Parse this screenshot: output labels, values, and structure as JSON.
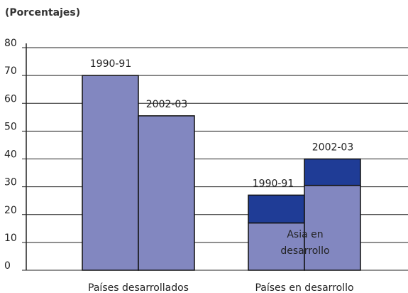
{
  "chart_data": {
    "type": "bar",
    "subtitle": "(Porcentajes)",
    "categories": [
      "Países desarrollados",
      "Países en desarrollo"
    ],
    "series": [
      {
        "name": "1990-91",
        "color": "#8287c0",
        "values": [
          70,
          17
        ],
        "top_color": "#1f3c96",
        "top_values": [
          null,
          10
        ]
      },
      {
        "name": "2002-03",
        "color": "#8287c0",
        "values": [
          55.5,
          30.5
        ],
        "top_color": "#1f3c96",
        "top_values": [
          null,
          9.5
        ]
      }
    ],
    "annotation": [
      "Asia en",
      "desarrollo"
    ],
    "ylim": [
      0,
      80
    ],
    "yticks": [
      0,
      10,
      20,
      30,
      40,
      50,
      60,
      70,
      80
    ],
    "grid": true
  }
}
